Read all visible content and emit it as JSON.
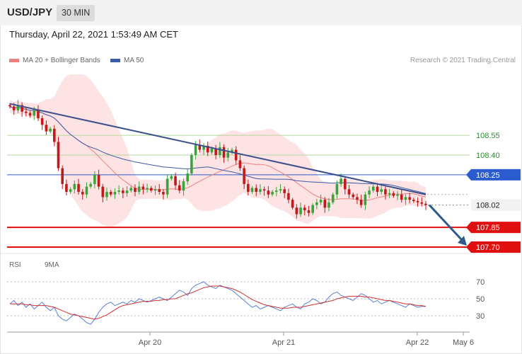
{
  "header": {
    "symbol": "USD/JPY",
    "interval": "30 MIN",
    "datetime": "Thursday, April 22, 2021 1:53:49 AM CET"
  },
  "legend": {
    "ma20_label": "MA 20 + Bollinger Bands",
    "ma50_label": "MA 50",
    "credit": "Research © 2021 Trading.Central"
  },
  "rsi_legend": {
    "rsi_label": "RSI",
    "ma9_label": "9MA"
  },
  "colors": {
    "up": "#3aa43a",
    "down": "#c01a1a",
    "bollinger_fill": "#fde0e0",
    "ma20": "#f08080",
    "ma50": "#3b5aa8",
    "trendline": "#3b4f8c",
    "resistance_minor": "#b5d6a0",
    "resistance_major": "#2b5ccf",
    "support": "#e01010",
    "arrow": "#2f5b8c",
    "rsi": "#5a80d0",
    "rsi_ma": "#d03030"
  },
  "chart_data": [
    {
      "type": "candlestick",
      "x_ticks": [
        "Apr 20",
        "Apr 21",
        "Apr 22",
        "May 6"
      ],
      "y_axis_labels": [
        {
          "value": 108.55,
          "label": "108.55",
          "kind": "resistance_minor"
        },
        {
          "value": 108.4,
          "label": "108.40",
          "kind": "resistance_minor"
        },
        {
          "value": 108.25,
          "label": "108.25",
          "kind": "resistance_major"
        },
        {
          "value": 108.02,
          "label": "108.02",
          "kind": "last_price"
        },
        {
          "value": 107.85,
          "label": "107.85",
          "kind": "support"
        },
        {
          "value": 107.7,
          "label": "107.70",
          "kind": "support"
        }
      ],
      "ylim": [
        107.7,
        108.85
      ],
      "candles_close": [
        108.77,
        108.74,
        108.78,
        108.73,
        108.72,
        108.7,
        108.74,
        108.68,
        108.63,
        108.58,
        108.6,
        108.5,
        108.3,
        108.18,
        108.12,
        108.14,
        108.18,
        108.12,
        108.1,
        108.16,
        108.18,
        108.25,
        108.16,
        108.08,
        108.12,
        108.1,
        108.12,
        108.13,
        108.11,
        108.13,
        108.15,
        108.12,
        108.16,
        108.14,
        108.15,
        108.13,
        108.14,
        108.12,
        108.1,
        108.22,
        108.24,
        108.17,
        108.13,
        108.2,
        108.26,
        108.4,
        108.48,
        108.44,
        108.47,
        108.42,
        108.45,
        108.4,
        108.46,
        108.38,
        108.42,
        108.44,
        108.36,
        108.3,
        108.18,
        108.12,
        108.15,
        108.12,
        108.14,
        108.13,
        108.1,
        108.12,
        108.13,
        108.14,
        108.11,
        108.06,
        108.0,
        107.95,
        108.0,
        107.98,
        107.96,
        108.02,
        108.04,
        108.06,
        108.0,
        108.04,
        108.1,
        108.18,
        108.22,
        108.14,
        108.1,
        108.08,
        108.06,
        108.02,
        108.1,
        108.13,
        108.16,
        108.12,
        108.14,
        108.1,
        108.11,
        108.09,
        108.1,
        108.06,
        108.08,
        108.06,
        108.05,
        108.04,
        108.03,
        108.02
      ],
      "trendline": [
        {
          "i": 0,
          "y": 108.79
        },
        {
          "i": 103,
          "y": 108.1
        }
      ],
      "forecast_target": 107.7
    },
    {
      "type": "line",
      "name": "RSI",
      "ylim": [
        20,
        80
      ],
      "y_ticks": [
        70,
        50,
        30
      ],
      "rsi_values": [
        44,
        48,
        42,
        46,
        40,
        44,
        38,
        42,
        46,
        40,
        36,
        40,
        30,
        26,
        24,
        28,
        32,
        30,
        26,
        22,
        20,
        26,
        34,
        40,
        44,
        46,
        42,
        44,
        46,
        44,
        48,
        46,
        50,
        48,
        46,
        48,
        50,
        52,
        50,
        48,
        52,
        56,
        60,
        58,
        54,
        62,
        66,
        68,
        70,
        66,
        64,
        62,
        66,
        64,
        62,
        60,
        56,
        52,
        48,
        44,
        40,
        42,
        38,
        40,
        42,
        40,
        38,
        36,
        40,
        42,
        44,
        40,
        38,
        44,
        46,
        50,
        48,
        44,
        46,
        52,
        56,
        58,
        54,
        52,
        50,
        48,
        52,
        56,
        54,
        50,
        46,
        48,
        44,
        46,
        48,
        46,
        44,
        42,
        40,
        44,
        42,
        40,
        41,
        41
      ],
      "ma9_values": [
        44,
        44,
        44,
        44,
        43,
        43,
        42,
        42,
        42,
        42,
        41,
        40,
        38,
        36,
        34,
        32,
        31,
        30,
        29,
        28,
        27,
        26,
        27,
        29,
        31,
        34,
        37,
        40,
        42,
        43,
        44,
        45,
        46,
        47,
        47,
        47,
        48,
        48,
        49,
        49,
        50,
        50,
        52,
        54,
        56,
        57,
        59,
        61,
        63,
        64,
        65,
        65,
        65,
        64,
        63,
        62,
        60,
        58,
        55,
        52,
        49,
        47,
        45,
        43,
        42,
        41,
        40,
        39,
        39,
        39,
        40,
        40,
        40,
        41,
        42,
        43,
        44,
        45,
        46,
        47,
        48,
        50,
        51,
        52,
        53,
        53,
        53,
        53,
        52,
        52,
        51,
        50,
        49,
        48,
        48,
        47,
        46,
        45,
        44,
        44,
        43,
        42,
        42,
        41
      ]
    }
  ]
}
